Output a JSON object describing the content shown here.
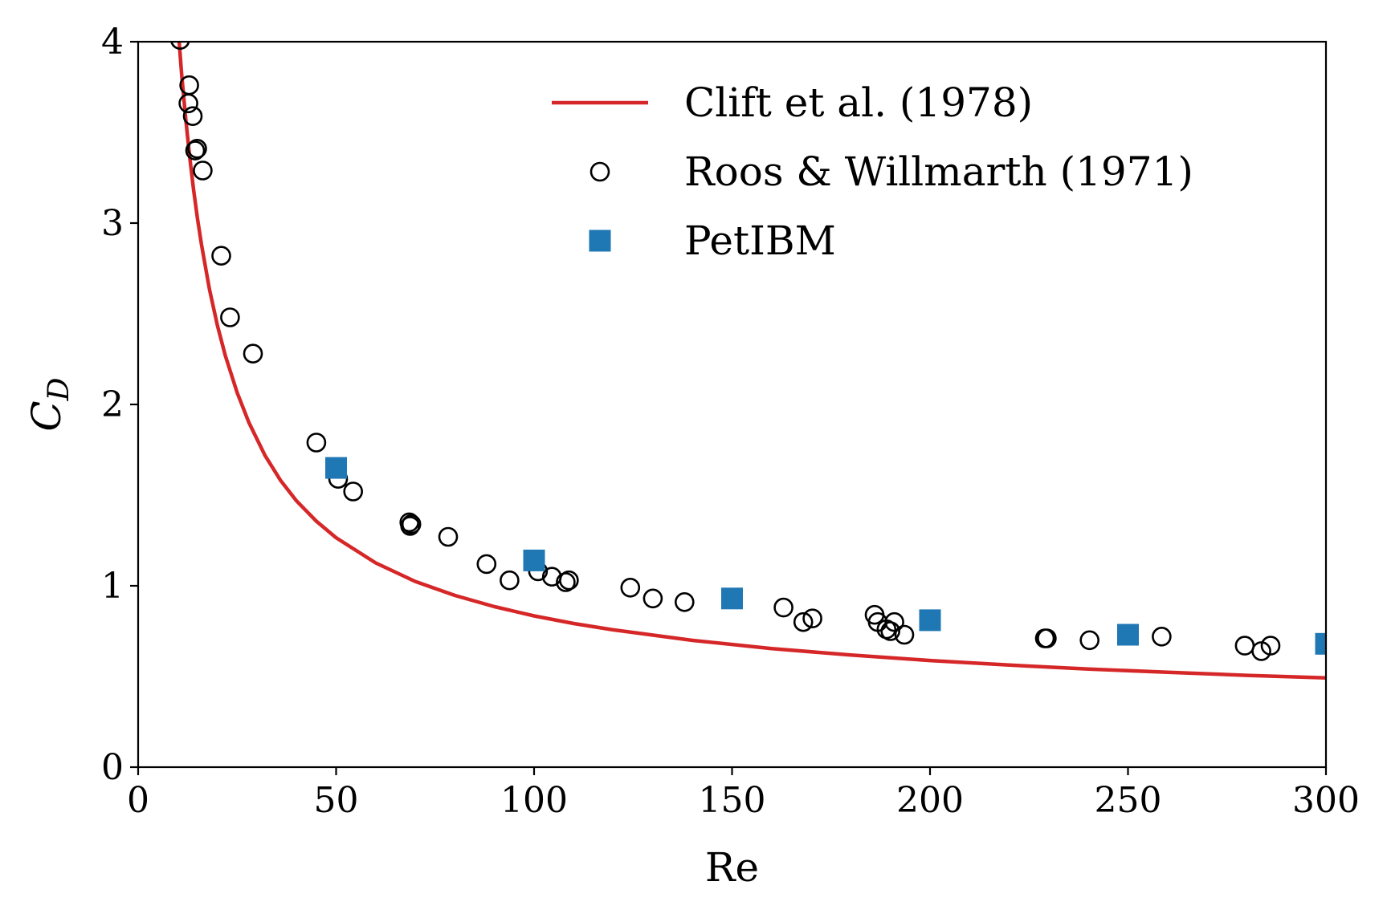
{
  "chart_data": {
    "type": "line",
    "xlabel": "Re",
    "ylabel": "C",
    "ylabel_subscript": "D",
    "xlim": [
      0,
      300
    ],
    "ylim": [
      0,
      4
    ],
    "xticks": [
      0,
      50,
      100,
      150,
      200,
      250,
      300
    ],
    "yticks": [
      0,
      1,
      2,
      3,
      4
    ],
    "grid": false,
    "legend_position": "top-right",
    "series": [
      {
        "name": "Clift et al. (1978)",
        "kind": "line",
        "color": "#d62728",
        "x": [
          10,
          11,
          12,
          13,
          14,
          15,
          16,
          18,
          20,
          22,
          25,
          28,
          32,
          36,
          40,
          45,
          50,
          60,
          70,
          80,
          90,
          100,
          110,
          120,
          140,
          160,
          180,
          200,
          220,
          240,
          260,
          280,
          300
        ],
        "y": [
          4.102,
          3.819,
          3.577,
          3.368,
          3.185,
          3.024,
          2.881,
          2.637,
          2.437,
          2.27,
          2.065,
          1.899,
          1.72,
          1.58,
          1.468,
          1.356,
          1.265,
          1.126,
          1.024,
          0.947,
          0.885,
          0.834,
          0.792,
          0.757,
          0.699,
          0.654,
          0.618,
          0.588,
          0.563,
          0.541,
          0.523,
          0.506,
          0.492
        ]
      },
      {
        "name": "Roos & Willmarth (1971)",
        "kind": "scatter",
        "marker": "open-circle",
        "color": "#000000",
        "x": [
          10.6,
          12.9,
          12.7,
          13.8,
          14.4,
          14.9,
          16.3,
          21.0,
          23.2,
          29.0,
          45.0,
          50.5,
          54.3,
          68.5,
          68.7,
          69.0,
          78.3,
          88.0,
          93.8,
          101.0,
          104.5,
          108.0,
          108.8,
          124.3,
          130.0,
          138.0,
          163.0,
          168.0,
          170.3,
          186.0,
          186.8,
          189.0,
          190.0,
          191.0,
          193.5,
          229.0,
          229.5,
          240.3,
          258.5,
          279.5,
          283.7,
          286.0
        ],
        "y": [
          4.01,
          3.76,
          3.66,
          3.59,
          3.4,
          3.41,
          3.29,
          2.82,
          2.48,
          2.28,
          1.79,
          1.59,
          1.52,
          1.35,
          1.33,
          1.34,
          1.27,
          1.12,
          1.03,
          1.08,
          1.05,
          1.02,
          1.03,
          0.99,
          0.93,
          0.91,
          0.88,
          0.8,
          0.82,
          0.84,
          0.8,
          0.76,
          0.75,
          0.8,
          0.73,
          0.71,
          0.71,
          0.7,
          0.72,
          0.67,
          0.64,
          0.67
        ]
      },
      {
        "name": "PetIBM",
        "kind": "scatter",
        "marker": "filled-square",
        "color": "#1f77b4",
        "x": [
          50,
          100,
          150,
          200,
          250,
          300
        ],
        "y": [
          1.65,
          1.14,
          0.93,
          0.81,
          0.73,
          0.68
        ]
      }
    ]
  }
}
